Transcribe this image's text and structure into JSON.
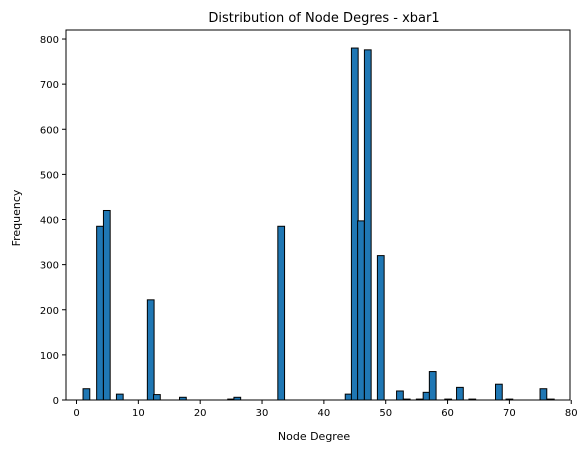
{
  "chart_data": {
    "type": "bar",
    "title": "Distribution of Node Degres - xbar1",
    "xlabel": "Node Degree",
    "ylabel": "Frequency",
    "xlim": [
      -1.7,
      79.8
    ],
    "ylim": [
      0,
      820
    ],
    "xticks": [
      0,
      10,
      20,
      30,
      40,
      50,
      60,
      70,
      80
    ],
    "yticks": [
      0,
      100,
      200,
      300,
      400,
      500,
      600,
      700,
      800
    ],
    "bin_width": 1.09,
    "grid": false,
    "bar_color": "#1f77b4",
    "edge_color": "#000000",
    "bars": [
      {
        "x": 1.6,
        "value": 25
      },
      {
        "x": 3.8,
        "value": 385
      },
      {
        "x": 4.9,
        "value": 420
      },
      {
        "x": 7.0,
        "value": 13
      },
      {
        "x": 12.0,
        "value": 222
      },
      {
        "x": 13.0,
        "value": 12
      },
      {
        "x": 17.2,
        "value": 6
      },
      {
        "x": 25.0,
        "value": 2
      },
      {
        "x": 26.0,
        "value": 6
      },
      {
        "x": 33.1,
        "value": 385
      },
      {
        "x": 44.0,
        "value": 13
      },
      {
        "x": 45.0,
        "value": 780
      },
      {
        "x": 46.0,
        "value": 397
      },
      {
        "x": 47.1,
        "value": 776
      },
      {
        "x": 49.2,
        "value": 320
      },
      {
        "x": 52.3,
        "value": 20
      },
      {
        "x": 53.4,
        "value": 2
      },
      {
        "x": 55.5,
        "value": 2
      },
      {
        "x": 56.6,
        "value": 17
      },
      {
        "x": 57.6,
        "value": 63
      },
      {
        "x": 60.1,
        "value": 2
      },
      {
        "x": 62.0,
        "value": 28
      },
      {
        "x": 64.0,
        "value": 2
      },
      {
        "x": 68.3,
        "value": 35
      },
      {
        "x": 70.0,
        "value": 2
      },
      {
        "x": 75.5,
        "value": 25
      },
      {
        "x": 76.7,
        "value": 2
      }
    ]
  }
}
